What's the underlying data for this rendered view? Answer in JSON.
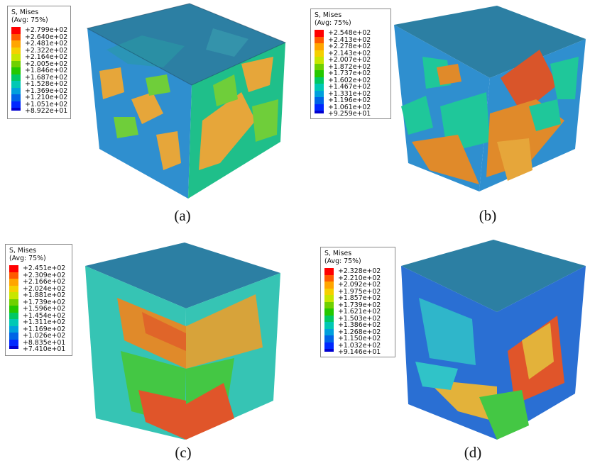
{
  "panels": [
    {
      "id": "a",
      "caption": "(a)",
      "legend": {
        "title": "S, Mises",
        "subtitle": "(Avg: 75%)",
        "entries": [
          "+2.799e+02",
          "+2.640e+02",
          "+2.481e+02",
          "+2.322e+02",
          "+2.164e+02",
          "+2.005e+02",
          "+1.846e+02",
          "+1.687e+02",
          "+1.528e+02",
          "+1.369e+02",
          "+1.210e+02",
          "+1.051e+02",
          "+8.922e+01"
        ]
      },
      "dominant_colors": [
        "#2f8fcf",
        "#1fc79a",
        "#e6a63a",
        "#6fce3a"
      ]
    },
    {
      "id": "b",
      "caption": "(b)",
      "legend": {
        "title": "S, Mises",
        "subtitle": "(Avg: 75%)",
        "entries": [
          "+2.548e+02",
          "+2.413e+02",
          "+2.278e+02",
          "+2.143e+02",
          "+2.007e+02",
          "+1.872e+02",
          "+1.737e+02",
          "+1.602e+02",
          "+1.467e+02",
          "+1.331e+02",
          "+1.196e+02",
          "+1.061e+02",
          "+9.259e+01"
        ]
      },
      "dominant_colors": [
        "#2f8fcf",
        "#1fc79a",
        "#e08a2a",
        "#d9552a"
      ]
    },
    {
      "id": "c",
      "caption": "(c)",
      "legend": {
        "title": "S, Mises",
        "subtitle": "(Avg: 75%)",
        "entries": [
          "+2.451e+02",
          "+2.309e+02",
          "+2.166e+02",
          "+2.024e+02",
          "+1.881e+02",
          "+1.739e+02",
          "+1.596e+02",
          "+1.454e+02",
          "+1.311e+02",
          "+1.169e+02",
          "+1.026e+02",
          "+8.835e+01",
          "+7.410e+01"
        ]
      },
      "dominant_colors": [
        "#36c4b4",
        "#44c744",
        "#e0552a",
        "#d7a33a"
      ]
    },
    {
      "id": "d",
      "caption": "(d)",
      "legend": {
        "title": "S, Mises",
        "subtitle": "(Avg: 75%)",
        "entries": [
          "+2.328e+02",
          "+2.210e+02",
          "+2.092e+02",
          "+1.975e+02",
          "+1.857e+02",
          "+1.739e+02",
          "+1.621e+02",
          "+1.503e+02",
          "+1.386e+02",
          "+1.268e+02",
          "+1.150e+02",
          "+1.032e+02",
          "+9.146e+01"
        ]
      },
      "dominant_colors": [
        "#2a6fd3",
        "#30c3c8",
        "#e0552a",
        "#e3b23a"
      ]
    }
  ],
  "legend_colors": [
    "#ff0000",
    "#ff5a00",
    "#ffa500",
    "#f5d000",
    "#c8e600",
    "#6fd000",
    "#24c800",
    "#00c864",
    "#00c8b4",
    "#00a0dc",
    "#0064e6",
    "#0028ff",
    "#0000d0"
  ]
}
